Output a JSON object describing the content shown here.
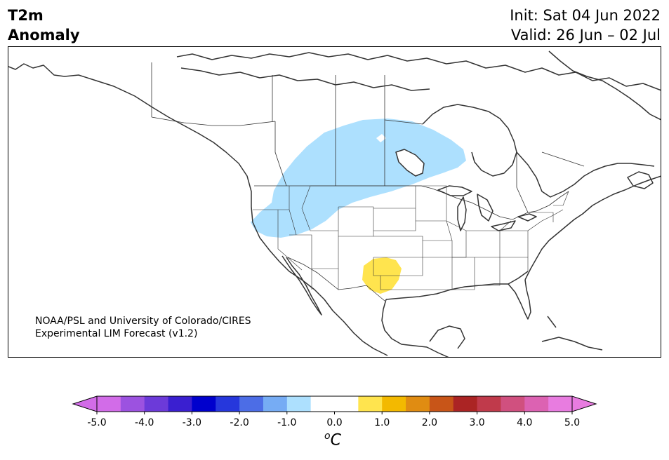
{
  "header": {
    "title_line1": "T2m",
    "title_line2": "Anomaly",
    "init_label": "Init: Sat 04 Jun 2022",
    "valid_label": "Valid: 26 Jun – 02 Jul"
  },
  "map": {
    "credit_line1": "NOAA/PSL and University of Colorado/CIRES",
    "credit_line2": "Experimental LIM Forecast (v1.2)",
    "anomaly_regions": [
      {
        "name": "cool-anomaly-northwest",
        "level": "-1.0 to -0.5",
        "color": "#ade0fe"
      },
      {
        "name": "warm-anomaly-southern-plains",
        "level": "0.5 to 1.0",
        "color": "#ffe44e"
      }
    ]
  },
  "colorbar": {
    "unit_base": "C",
    "unit_sup": "o",
    "ticks": [
      "-5.0",
      "-4.0",
      "-3.0",
      "-2.0",
      "-1.0",
      "0.0",
      "1.0",
      "2.0",
      "3.0",
      "4.0",
      "5.0"
    ],
    "colors": [
      "#d26ce8",
      "#9c52e0",
      "#6c3ad9",
      "#3a1fd0",
      "#0000cd",
      "#2637dc",
      "#4c6de6",
      "#76acf4",
      "#ade0fe",
      "#ffffff",
      "#ffffff",
      "#ffe44e",
      "#f3b900",
      "#e08c12",
      "#c85518",
      "#ab2424",
      "#c03a4b",
      "#d0507f",
      "#dc62b2",
      "#e87ce0"
    ],
    "under_color": "#d26ce8",
    "over_color": "#e87ce0"
  }
}
